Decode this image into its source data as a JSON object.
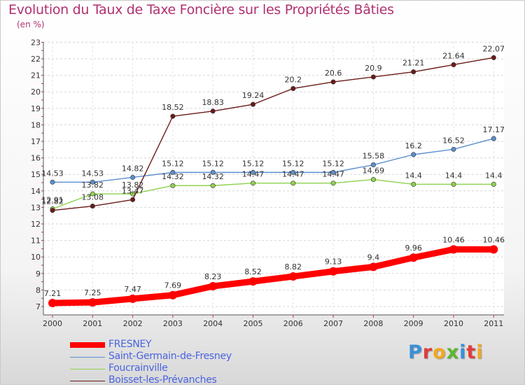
{
  "title": "Evolution du Taux de Taxe Foncière sur les Propriétés Bâties",
  "unit_label": "(en %)",
  "logo_text": "Proxiti",
  "logo_colors": [
    "#3a8fd8",
    "#e23b3b",
    "#f2a81d",
    "#5cb82e",
    "#3a8fd8",
    "#e23b3b",
    "#f2a81d"
  ],
  "chart_data": {
    "type": "line",
    "x": [
      "2000",
      "2001",
      "2002",
      "2003",
      "2004",
      "2005",
      "2006",
      "2007",
      "2008",
      "2009",
      "2010",
      "2011"
    ],
    "ylim": [
      7,
      23
    ],
    "yticks": [
      "7",
      "8",
      "9",
      "10",
      "11",
      "12",
      "13",
      "14",
      "15",
      "16",
      "17",
      "18",
      "19",
      "20",
      "21",
      "22",
      "23"
    ],
    "grid": "horizontal dashed",
    "legend_position": "bottom-left",
    "series": [
      {
        "name": "FRESNEY",
        "color": "#ff0000",
        "values": [
          7.21,
          7.25,
          7.47,
          7.69,
          8.23,
          8.52,
          8.82,
          9.13,
          9.4,
          9.96,
          10.46,
          10.46
        ],
        "labels": [
          "7.21",
          "7.25",
          "7.47",
          "7.69",
          "8.23",
          "8.52",
          "8.82",
          "9.13",
          "9.4",
          "9.96",
          "10.46",
          "10.46"
        ]
      },
      {
        "name": "Saint-Germain-de-Fresney",
        "color": "#5b8fcf",
        "values": [
          14.53,
          14.53,
          14.82,
          15.12,
          15.12,
          15.12,
          15.12,
          15.12,
          15.58,
          16.2,
          16.52,
          17.17
        ],
        "labels": [
          "14.53",
          "14.53",
          "14.82",
          "15.12",
          "15.12",
          "15.12",
          "15.12",
          "15.12",
          "15.58",
          "16.2",
          "16.52",
          "17.17"
        ]
      },
      {
        "name": "Foucrainville",
        "color": "#8fd24e",
        "values": [
          12.91,
          13.82,
          13.82,
          14.32,
          14.32,
          14.47,
          14.47,
          14.47,
          14.69,
          14.4,
          14.4,
          14.4
        ],
        "labels": [
          "12.91",
          "13.82",
          "13.82",
          "14.32",
          "14.32",
          "14.47",
          "14.47",
          "14.47",
          "14.69",
          "14.4",
          "14.4",
          "14.4"
        ]
      },
      {
        "name": "Boisset-les-Prévanches",
        "color": "#6b1a1a",
        "values": [
          12.82,
          13.08,
          13.47,
          18.52,
          18.83,
          19.24,
          20.2,
          20.6,
          20.9,
          21.21,
          21.64,
          22.07
        ],
        "labels": [
          "12.82",
          "13.08",
          "13.47",
          "18.52",
          "18.83",
          "19.24",
          "20.2",
          "20.6",
          "20.9",
          "21.21",
          "21.64",
          "22.07"
        ]
      }
    ]
  }
}
